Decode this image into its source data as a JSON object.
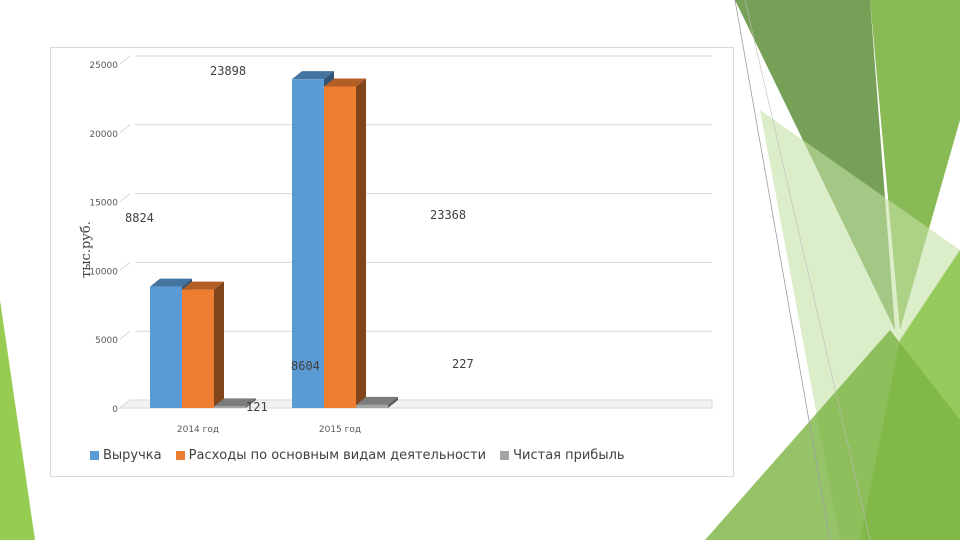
{
  "chart_data": {
    "type": "bar",
    "categories": [
      "2014 год",
      "2015 год"
    ],
    "series": [
      {
        "name": "Выручка",
        "values": [
          8824,
          23898
        ],
        "color": "#5B9BD5"
      },
      {
        "name": "Расходы по основным видам деятельности",
        "values": [
          8604,
          23368
        ],
        "color": "#ED7D31"
      },
      {
        "name": "Чистая прибыль",
        "values": [
          121,
          227
        ],
        "color": "#A5A5A5"
      }
    ],
    "data_labels": [
      "8824",
      "23898",
      "8604",
      "23368",
      "121",
      "227"
    ],
    "title": "",
    "xlabel": "",
    "ylabel": "тыс.руб.",
    "ylim": [
      0,
      25000
    ],
    "yticks": [
      "0",
      "5000",
      "10000",
      "15000",
      "20000",
      "25000"
    ],
    "grid": true,
    "legend": "bottom",
    "style": "3d-clustered-bar"
  }
}
